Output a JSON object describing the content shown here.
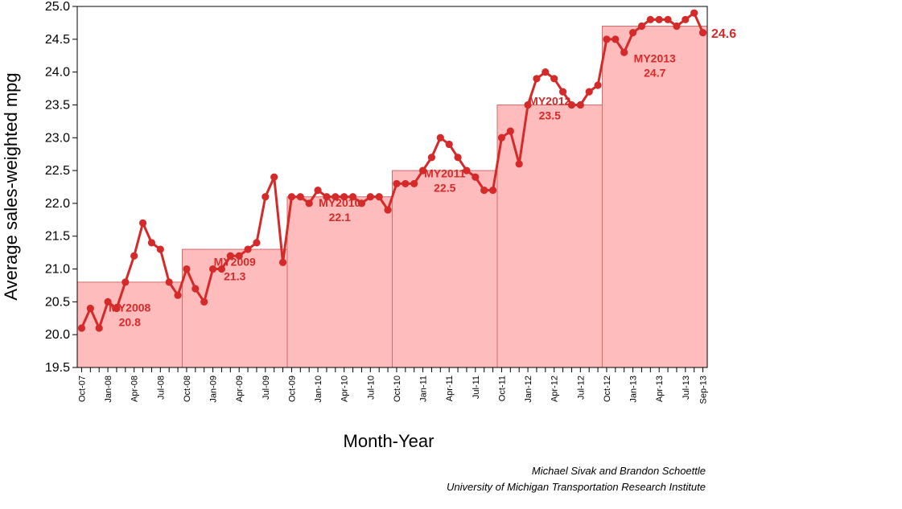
{
  "chart_data": {
    "type": "line",
    "xlabel": "Month-Year",
    "ylabel": "Average sales-weighted mpg",
    "ylim": [
      19.5,
      25.0
    ],
    "yticks": [
      "19.5",
      "20.0",
      "20.5",
      "21.0",
      "21.5",
      "22.0",
      "22.5",
      "23.0",
      "23.5",
      "24.0",
      "24.5",
      "25.0"
    ],
    "x_tick_labels": [
      "Oct-07",
      "Jan-08",
      "Apr-08",
      "Jul-08",
      "Oct-08",
      "Jan-09",
      "Apr-09",
      "Jul-09",
      "Oct-09",
      "Jan-10",
      "Apr-10",
      "Jul-10",
      "Oct-10",
      "Jan-11",
      "Apr-11",
      "Jul-11",
      "Oct-11",
      "Jan-12",
      "Apr-12",
      "Jul-12",
      "Oct-12",
      "Jan-13",
      "Apr-13",
      "Jul-13",
      "Sep-13"
    ],
    "grid": false,
    "colors": {
      "line": "#d42a2a",
      "fill": "#ffbcbc",
      "fill_edge": "#d46a6a"
    },
    "x_start": "Oct-07",
    "x_end": "Sep-13",
    "series": [
      {
        "values": [
          20.1,
          20.4,
          20.1,
          20.5,
          20.4,
          20.8,
          21.2,
          21.7,
          21.4,
          21.3,
          20.8,
          20.6,
          21.0,
          20.7,
          20.5,
          21.0,
          21.0,
          21.2,
          21.2,
          21.3,
          21.4,
          22.1,
          22.4,
          21.1,
          22.1,
          22.1,
          22.0,
          22.2,
          22.1,
          22.1,
          22.1,
          22.1,
          22.0,
          22.1,
          22.1,
          21.9,
          22.3,
          22.3,
          22.3,
          22.5,
          22.7,
          23.0,
          22.9,
          22.7,
          22.5,
          22.4,
          22.2,
          22.2,
          23.0,
          23.1,
          22.6,
          23.5,
          23.9,
          24.0,
          23.9,
          23.7,
          23.5,
          23.5,
          23.7,
          23.8,
          24.5,
          24.5,
          24.3,
          24.6,
          24.7,
          24.8,
          24.8,
          24.8,
          24.7,
          24.8,
          24.9,
          24.6
        ]
      }
    ],
    "model_years": [
      {
        "label": "MY2008",
        "value_label": "20.8",
        "value": 20.8,
        "start": "Oct-07",
        "end": "Sep-08"
      },
      {
        "label": "MY2009",
        "value_label": "21.3",
        "value": 21.3,
        "start": "Oct-08",
        "end": "Sep-09"
      },
      {
        "label": "MY2010",
        "value_label": "22.1",
        "value": 22.1,
        "start": "Oct-09",
        "end": "Sep-10"
      },
      {
        "label": "MY2011",
        "value_label": "22.5",
        "value": 22.5,
        "start": "Oct-10",
        "end": "Sep-11"
      },
      {
        "label": "MY2012",
        "value_label": "23.5",
        "value": 23.5,
        "start": "Oct-11",
        "end": "Sep-12"
      },
      {
        "label": "MY2013",
        "value_label": "24.7",
        "value": 24.7,
        "start": "Oct-12",
        "end": "Sep-13"
      }
    ],
    "end_label": "24.6",
    "credits": [
      "Michael Sivak and Brandon Schoettle",
      "University of Michigan Transportation Research Institute"
    ]
  }
}
